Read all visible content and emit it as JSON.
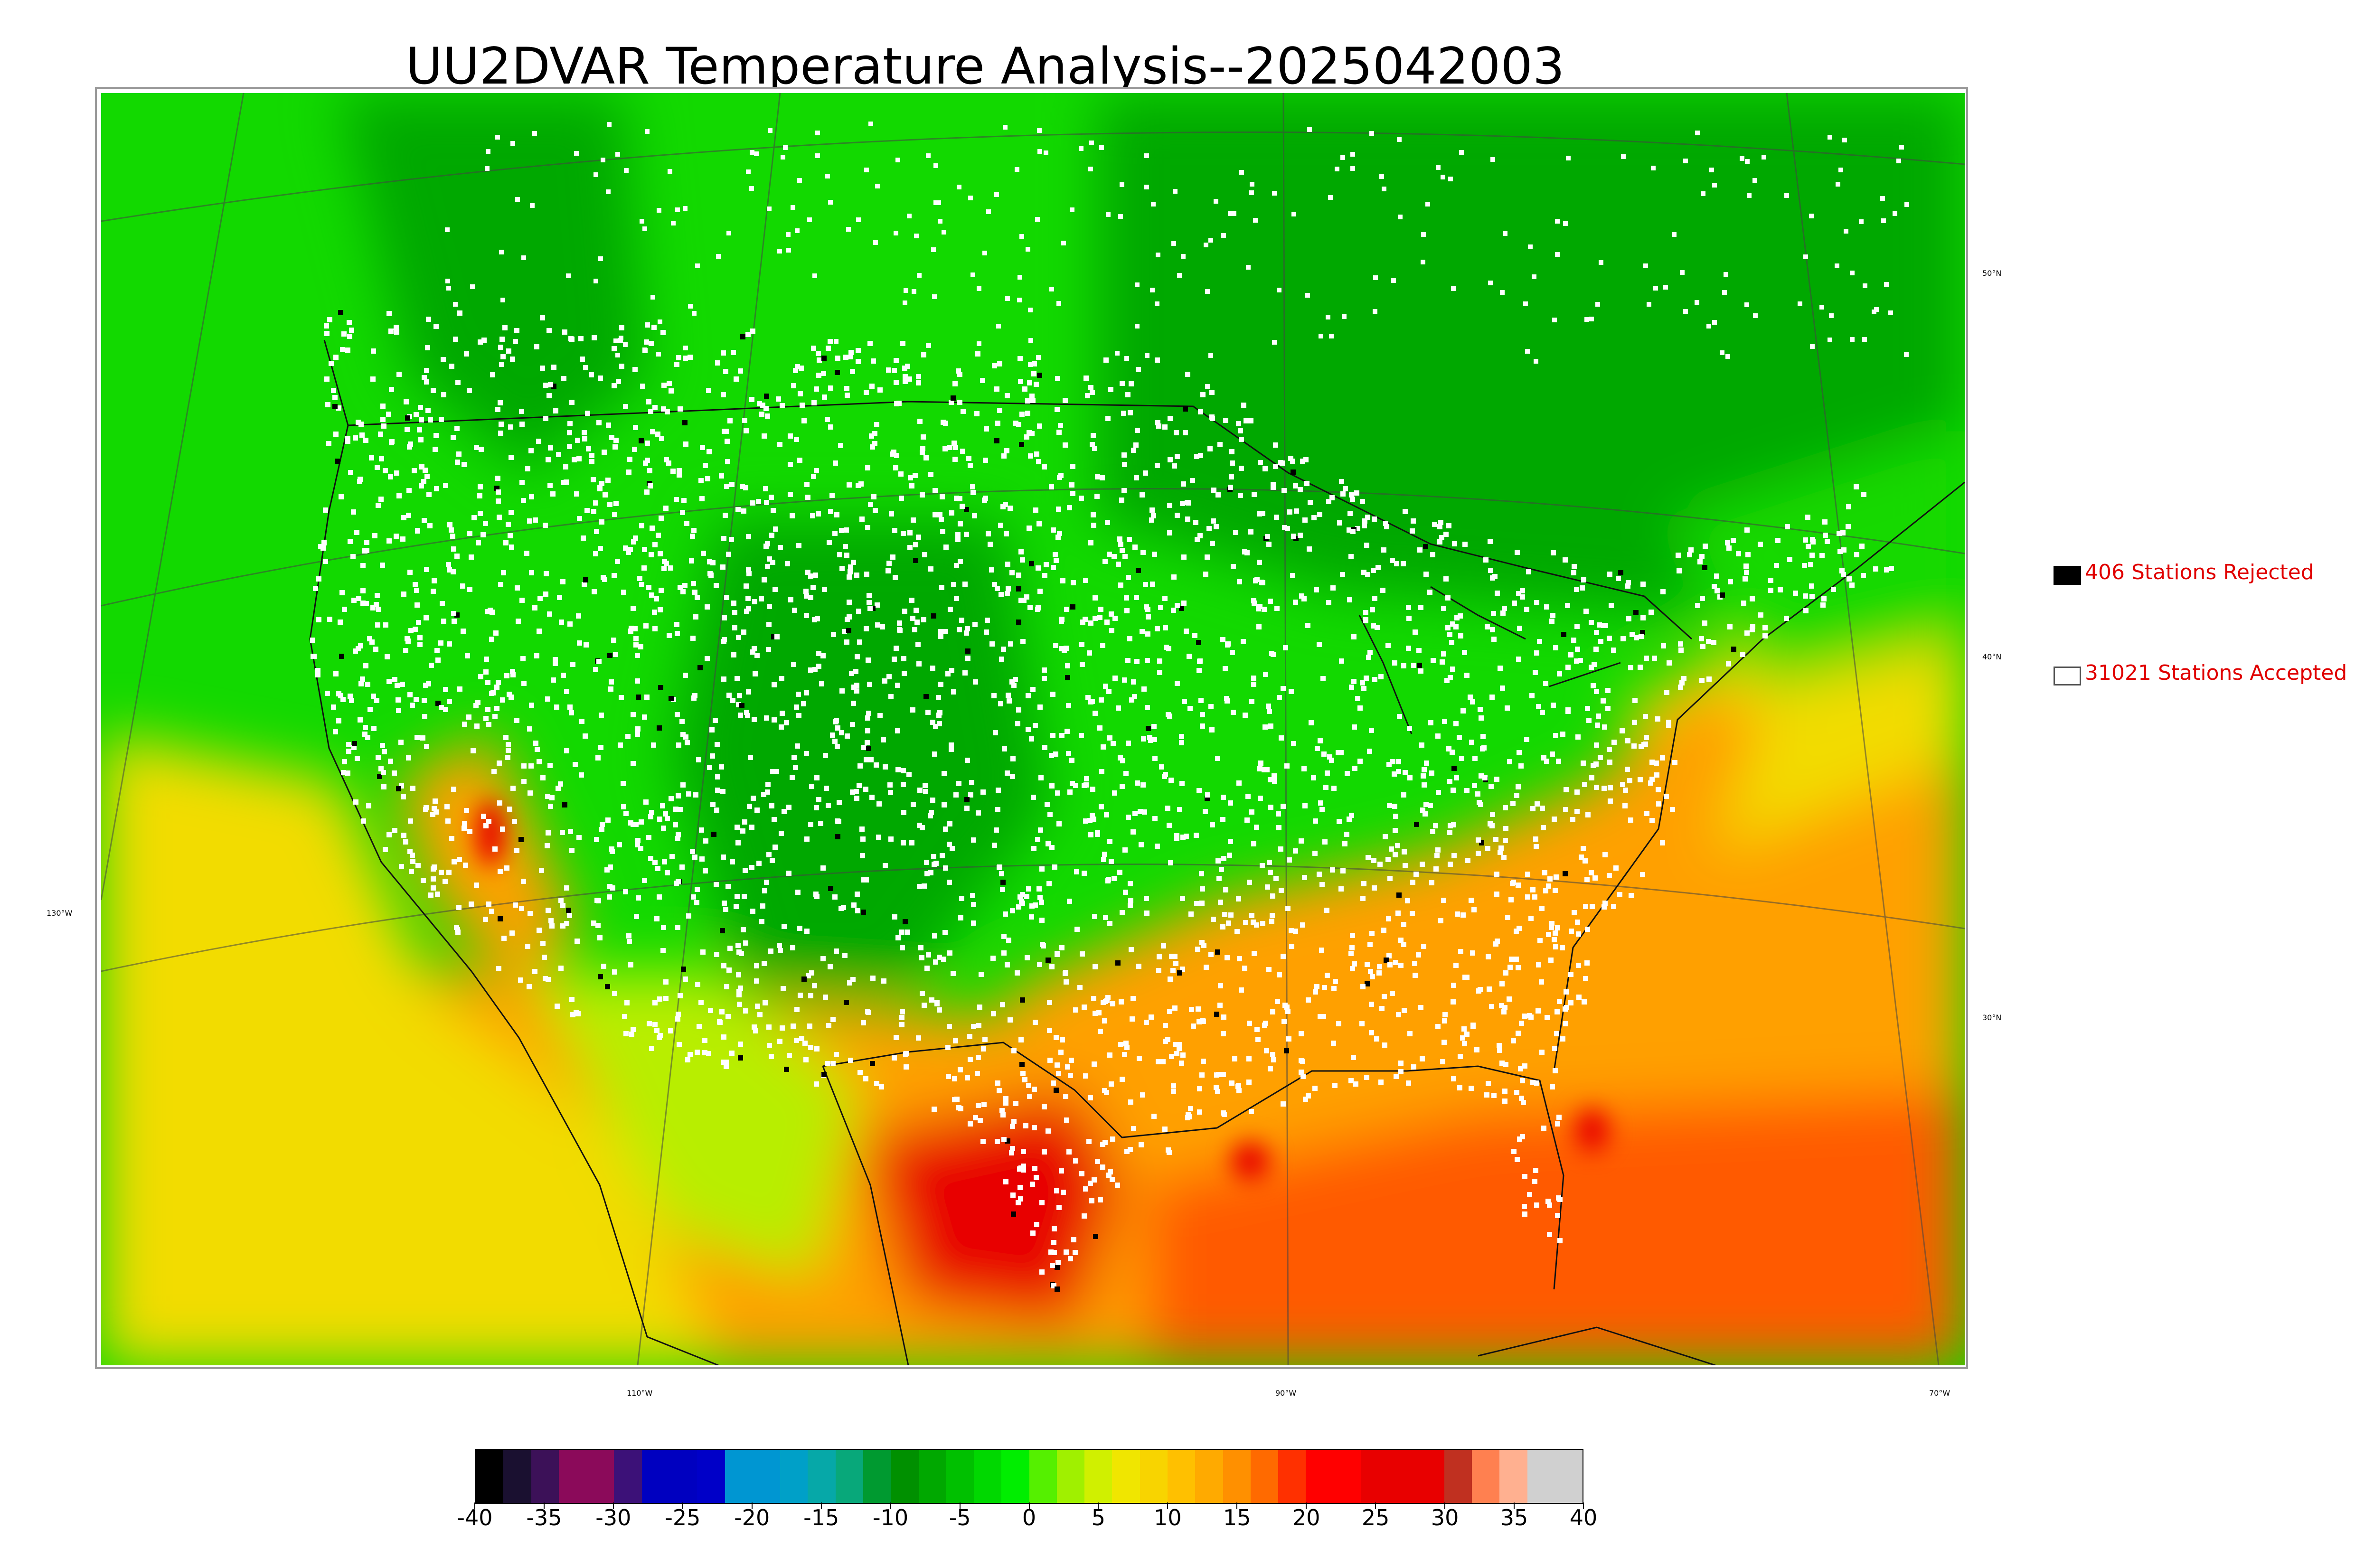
{
  "title": "UU2DVAR Temperature Analysis--2025042003",
  "map": {
    "latitude_labels": [
      "50°N",
      "40°N",
      "30°N"
    ],
    "longitude_labels": [
      "130°W",
      "110°W",
      "90°W",
      "70°W"
    ],
    "field_colors": {
      "cold_core": "#0a8f8a",
      "deep_green": "#00a800",
      "green": "#12d900",
      "yellow_green": "#b8ee00",
      "yellow": "#f2dc00",
      "orange": "#ffa000",
      "red_orange": "#ff5a00",
      "red": "#e80000"
    },
    "station_colors": {
      "accepted": "#ffffff",
      "rejected": "#000000"
    }
  },
  "legend": {
    "rejected": {
      "text": "406 Stations Rejected",
      "swatch": "black"
    },
    "accepted": {
      "text": "31021 Stations Accepted",
      "swatch": "white"
    },
    "text_color": "#e00000"
  },
  "colorbar": {
    "min": -40,
    "max": 40,
    "tick_labels": [
      "-40",
      "-35",
      "-30",
      "-25",
      "-20",
      "-15",
      "-10",
      "-5",
      "0",
      "5",
      "10",
      "15",
      "20",
      "25",
      "30",
      "35",
      "40"
    ],
    "colors": [
      "#000000",
      "#1a1030",
      "#3c1158",
      "#8b0a5a",
      "#8b0a5a",
      "#3c1178",
      "#0000c0",
      "#0000c0",
      "#0000c8",
      "#0096d2",
      "#0096d2",
      "#00a0c8",
      "#06a8a8",
      "#08a87a",
      "#009a30",
      "#009000",
      "#00a800",
      "#00c000",
      "#00d800",
      "#00ee00",
      "#55f000",
      "#a0f000",
      "#d0f000",
      "#f0e600",
      "#f8d400",
      "#ffc000",
      "#ffaa00",
      "#ff9000",
      "#ff6a00",
      "#ff3000",
      "#ff0000",
      "#ff0000",
      "#e80000",
      "#e80000",
      "#e80000",
      "#c03020",
      "#ff8050",
      "#ffb090",
      "#d0d0d0",
      "#d0d0d0"
    ]
  }
}
